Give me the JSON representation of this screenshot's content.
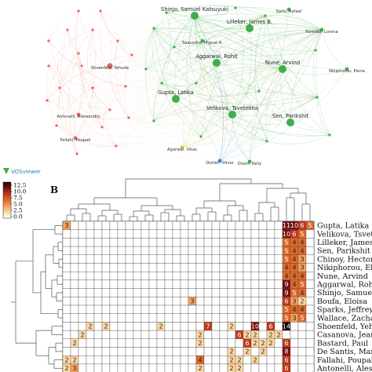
{
  "network": {
    "footer_brand": "VOSviewer",
    "colors": {
      "red": "#e8665f",
      "green": "#3fae49",
      "yellow": "#d2c93b",
      "blue": "#3f83c9"
    },
    "nodes": [
      {
        "label": "Shinjo, Samuel Katsuyuki",
        "cluster": "green",
        "size": "large"
      },
      {
        "label": "Saito, Rafael",
        "cluster": "green",
        "size": "small"
      },
      {
        "label": "Lilleker, James B.",
        "cluster": "green",
        "size": "large"
      },
      {
        "label": "Paredes, Lorena",
        "cluster": "green",
        "size": "small"
      },
      {
        "label": "Saavedra, Miguel A.",
        "cluster": "green",
        "size": "small"
      },
      {
        "label": "Aggarwal, Rohit",
        "cluster": "green",
        "size": "large"
      },
      {
        "label": "Nune, Arvind",
        "cluster": "green",
        "size": "large"
      },
      {
        "label": "Nikiphorou, Elena",
        "cluster": "green",
        "size": "small"
      },
      {
        "label": "Gupta, Latika",
        "cluster": "green",
        "size": "large"
      },
      {
        "label": "Velikova, Tsvetelina",
        "cluster": "green",
        "size": "large"
      },
      {
        "label": "Sen, Parikshit",
        "cluster": "green",
        "size": "large"
      },
      {
        "label": "Agarwal, Vikas",
        "cluster": "yellow",
        "size": "small"
      },
      {
        "label": "Distler, Oliver",
        "cluster": "blue",
        "size": "small"
      },
      {
        "label": "Dixon, Kelly",
        "cluster": "green",
        "size": "small"
      },
      {
        "label": "Shoenfeld, Yehuda",
        "cluster": "red",
        "size": "medium"
      },
      {
        "label": "Antonelli, Alessandro",
        "cluster": "red",
        "size": "small"
      },
      {
        "label": "Fallahi, Poupak",
        "cluster": "red",
        "size": "small"
      }
    ]
  },
  "heatmap": {
    "panel_label": "B",
    "legend_ticks": [
      "12.5",
      "10.0",
      "7.5",
      "5.0",
      "2.5",
      "0.0"
    ],
    "color_stops": [
      "#ffffff",
      "#ffd9a8",
      "#f5a05a",
      "#e06a2a",
      "#c0391b",
      "#7a0f0f",
      "#1a0505"
    ],
    "rows": [
      {
        "name": "Gupta, Latika",
        "cells": {
          "0": 3,
          "28": 11,
          "29": 10,
          "30": 6,
          "31": 5
        }
      },
      {
        "name": "Velikova, Tsvetelina",
        "cells": {
          "28": 10,
          "29": 6,
          "30": 5
        }
      },
      {
        "name": "Lilleker, James B.",
        "cells": {
          "28": 5,
          "29": 4,
          "30": 4
        }
      },
      {
        "name": "Sen, Parikshit",
        "cells": {
          "28": 5,
          "29": 4,
          "30": 4
        }
      },
      {
        "name": "Chinoy, Hector",
        "cells": {
          "28": 5,
          "29": 4,
          "30": 3
        }
      },
      {
        "name": "Nikiphorou, Elena",
        "cells": {
          "28": 4,
          "29": 4,
          "30": 3
        }
      },
      {
        "name": "Nune, Arvind",
        "cells": {
          "28": 4,
          "29": 4,
          "30": 4
        }
      },
      {
        "name": "Aggarwal, Rohit",
        "cells": {
          "28": 9,
          "29": 4,
          "30": 5
        }
      },
      {
        "name": "Shinjo, Samuel Katsuyuki",
        "cells": {
          "28": 9,
          "29": 5,
          "30": 4
        }
      },
      {
        "name": "Boufa, Eloisa",
        "cells": {
          "16": 3,
          "28": 6,
          "29": 3,
          "30": 2
        }
      },
      {
        "name": "Sparks, Jeffrey A.",
        "cells": {
          "28": 5,
          "29": 4,
          "30": 4
        }
      },
      {
        "name": "Wallace, Zachary S.",
        "cells": {
          "28": 5,
          "29": 3,
          "30": 5
        }
      },
      {
        "name": "Shoenfeld, Yehuda",
        "cells": {
          "3": 2,
          "5": 2,
          "12": 2,
          "18": 7,
          "21": 2,
          "24": 10,
          "26": 6,
          "28": 14
        }
      },
      {
        "name": "Casanova, Jean-Laurent",
        "cells": {
          "2": 2,
          "17": 2,
          "22": 6,
          "23": 2,
          "24": 2,
          "26": 2,
          "27": 2
        }
      },
      {
        "name": "Bastard, Paul",
        "cells": {
          "1": 2,
          "17": 2,
          "23": 6,
          "24": 2,
          "25": 2,
          "26": 2,
          "28": 6
        }
      },
      {
        "name": "De Santis, Maria",
        "cells": {
          "21": 2,
          "23": 2,
          "25": 2,
          "28": 8
        }
      },
      {
        "name": "Fallahi, Poupak",
        "cells": {
          "0": 2,
          "1": 2,
          "17": 4,
          "21": 2,
          "22": 2,
          "24": 2,
          "28": 6
        }
      },
      {
        "name": "Antonelli, Alessandro",
        "cells": {
          "0": 2,
          "1": 3,
          "17": 2,
          "21": 2,
          "22": 2,
          "28": 6
        }
      }
    ]
  }
}
